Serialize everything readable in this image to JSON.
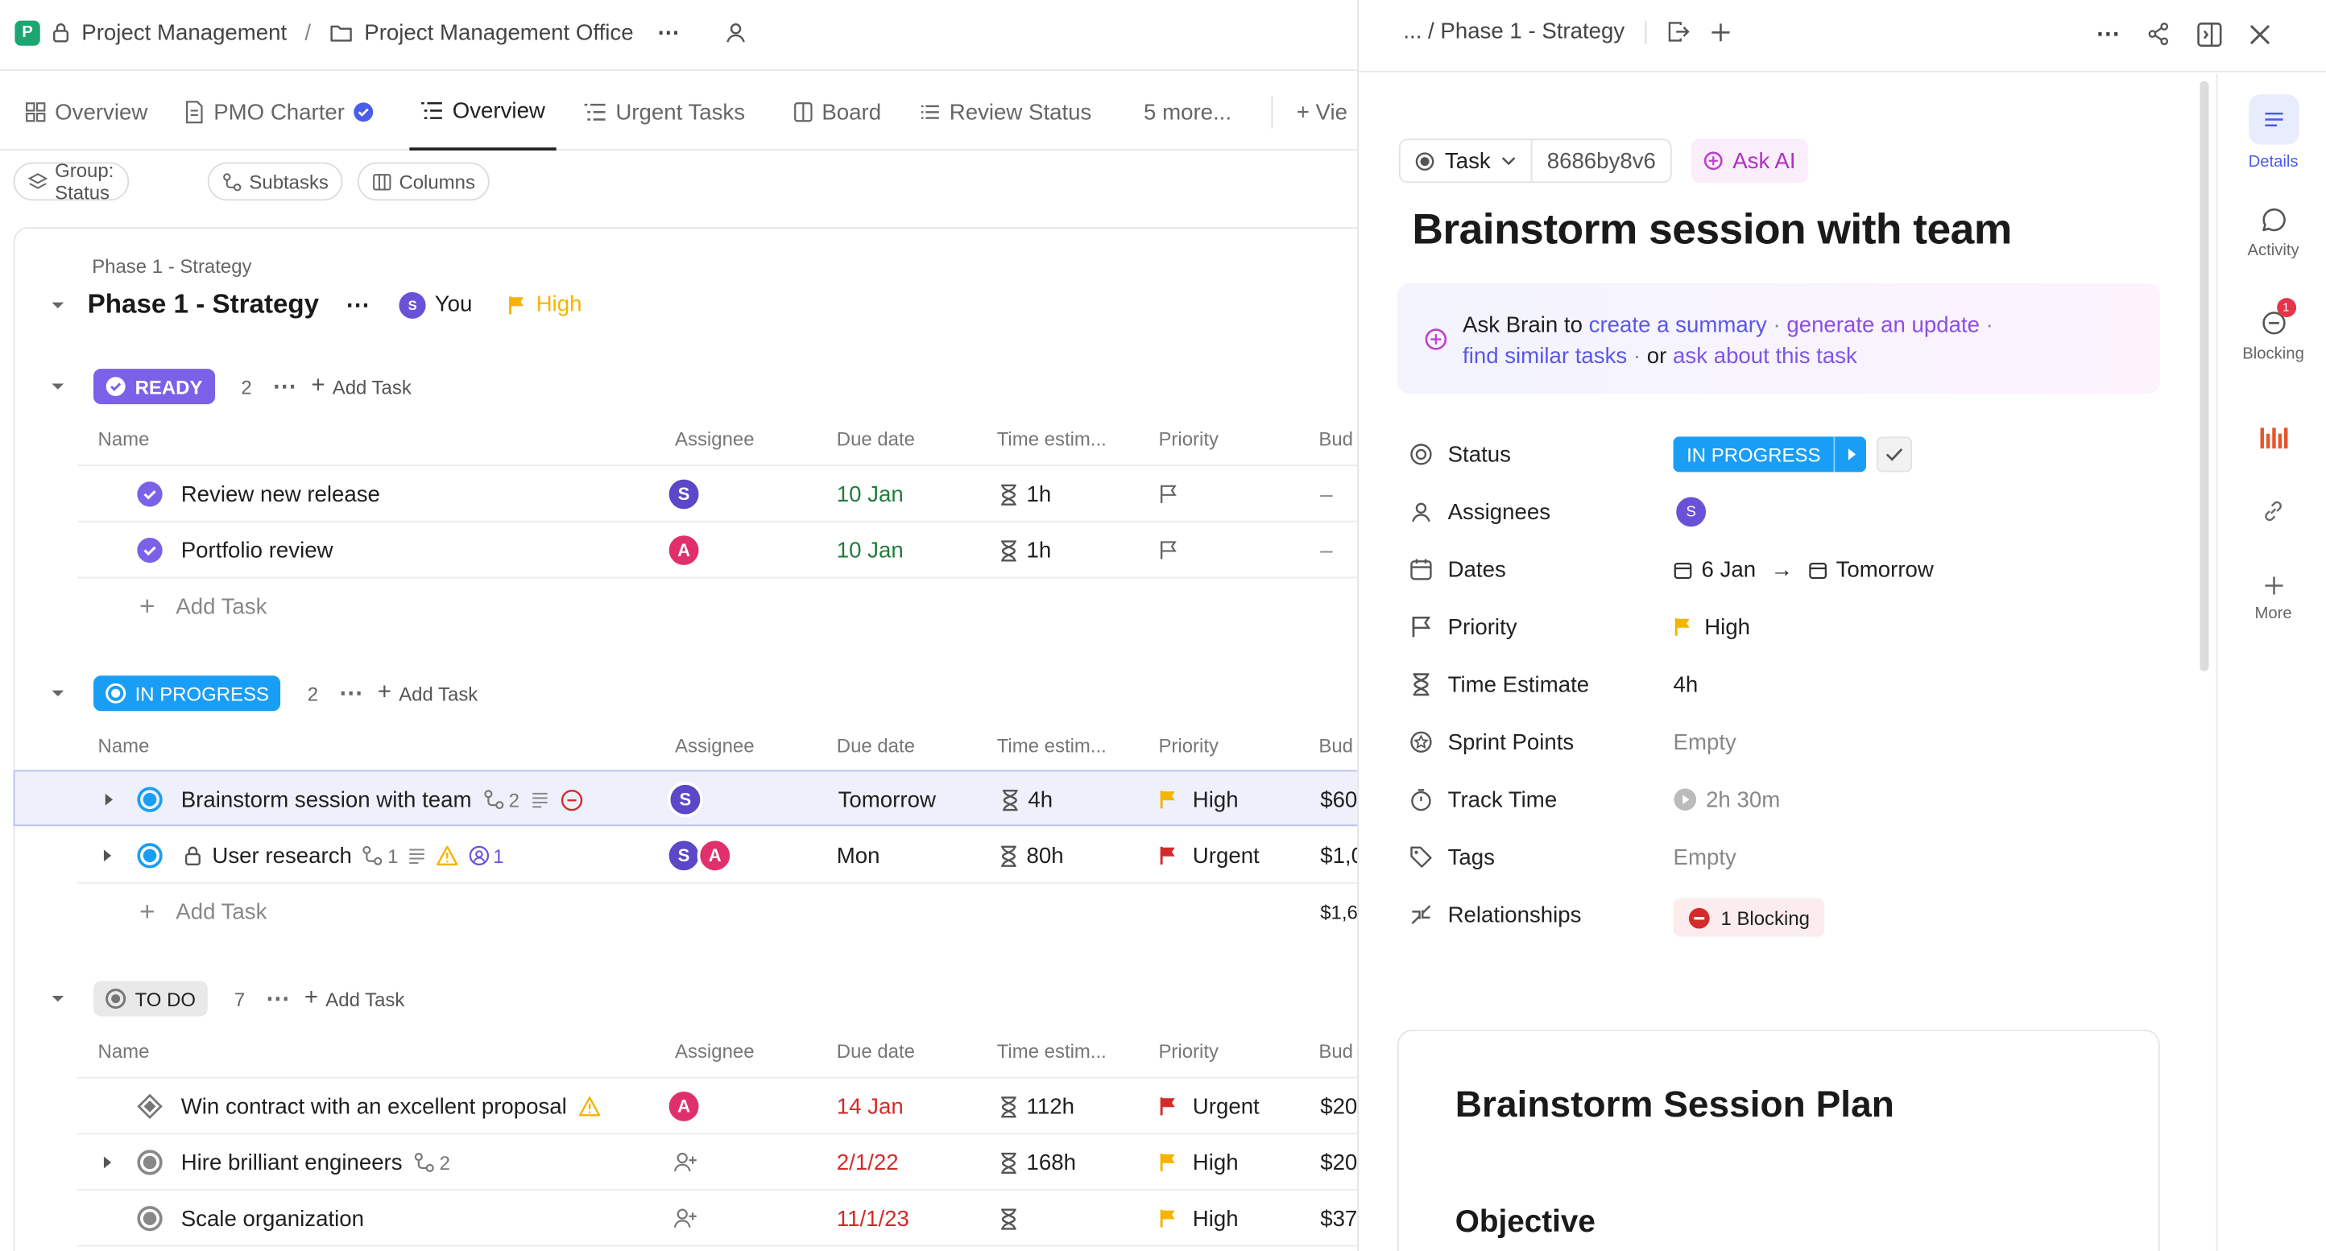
{
  "topbar": {
    "space_name": "Project Management",
    "folder_name": "Project Management Office",
    "sep": "/",
    "more": "⋯"
  },
  "tabs": [
    {
      "label": "Overview"
    },
    {
      "label": "PMO Charter"
    },
    {
      "label": "Overview"
    },
    {
      "label": "Urgent Tasks"
    },
    {
      "label": "Board"
    },
    {
      "label": "Review Status"
    },
    {
      "label": "5 more..."
    },
    {
      "label": "+ Vie"
    }
  ],
  "chips": {
    "group": "Group: Status",
    "subtasks": "Subtasks",
    "columns": "Columns"
  },
  "list": {
    "breadcrumb": "Phase 1 - Strategy",
    "title": "Phase 1 - Strategy",
    "assignee": "You",
    "priority": "High"
  },
  "columns": {
    "name": "Name",
    "assignee": "Assignee",
    "due": "Due date",
    "time": "Time estim...",
    "priority": "Priority",
    "budget": "Bud"
  },
  "add_task": "Add Task",
  "groups": [
    {
      "status": "READY",
      "count": "2",
      "color": "#7b61e8",
      "tasks": [
        {
          "name": "Review new release",
          "assignee": "S",
          "assignee_color": "#5b47c8",
          "due": "10 Jan",
          "due_color": "green",
          "time": "1h",
          "priority": "",
          "budget": "–"
        },
        {
          "name": "Portfolio review",
          "assignee": "A",
          "assignee_color": "#e0306b",
          "due": "10 Jan",
          "due_color": "green",
          "time": "1h",
          "priority": "",
          "budget": "–"
        }
      ]
    },
    {
      "status": "IN PROGRESS",
      "count": "2",
      "color": "#1a9ef5",
      "tasks": [
        {
          "name": "Brainstorm session with team",
          "subtasks": "2",
          "assignee": "S",
          "due": "Tomorrow",
          "time": "4h",
          "priority": "High",
          "budget": "$60"
        },
        {
          "name": "User research",
          "subtasks": "1",
          "mentions": "1",
          "assignee": "S",
          "assignee2": "A",
          "due": "Mon",
          "time": "80h",
          "priority": "Urgent",
          "budget": "$1,0"
        }
      ],
      "total": "$1,6"
    },
    {
      "status": "TO DO",
      "count": "7",
      "color": "#e9e9e9",
      "tasks": [
        {
          "name": "Win contract with an excellent proposal",
          "assignee": "A",
          "due": "14 Jan",
          "time": "112h",
          "priority": "Urgent",
          "budget": "$20"
        },
        {
          "name": "Hire brilliant engineers",
          "subtasks": "2",
          "due": "2/1/22",
          "time": "168h",
          "priority": "High",
          "budget": "$20"
        },
        {
          "name": "Scale organization",
          "due": "11/1/23",
          "time": "",
          "priority": "High",
          "budget": "$37"
        }
      ]
    }
  ],
  "panel": {
    "breadcrumb": "... / Phase 1 - Strategy",
    "task_type": "Task",
    "task_id": "8686by8v6",
    "ask_ai": "Ask AI",
    "title": "Brainstorm session with team",
    "brain": {
      "prefix": "Ask Brain to",
      "l1": "create a summary",
      "l2": "generate an update",
      "l3": "find similar tasks",
      "mid": "or",
      "l4": "ask about this task",
      "dot": "·"
    },
    "props": {
      "status_label": "Status",
      "status_value": "IN PROGRESS",
      "assignees_label": "Assignees",
      "assignee": "S",
      "dates_label": "Dates",
      "start": "6 Jan",
      "end": "Tomorrow",
      "arrow": "→",
      "priority_label": "Priority",
      "priority_value": "High",
      "time_label": "Time Estimate",
      "time_value": "4h",
      "sprint_label": "Sprint Points",
      "sprint_value": "Empty",
      "track_label": "Track Time",
      "track_value": "2h 30m",
      "tags_label": "Tags",
      "tags_value": "Empty",
      "rel_label": "Relationships",
      "rel_value": "1 Blocking"
    },
    "doc": {
      "h1": "Brainstorm Session Plan",
      "h2": "Objective"
    }
  },
  "sidebar": {
    "details": "Details",
    "activity": "Activity",
    "blocking": "Blocking",
    "blocking_badge": "1",
    "more": "More"
  },
  "colors": {
    "accent": "#7b61e8",
    "in_progress": "#1a9ef5",
    "urgent": "#d42a2a",
    "high": "#f5b400",
    "green": "#1e7e3a"
  }
}
